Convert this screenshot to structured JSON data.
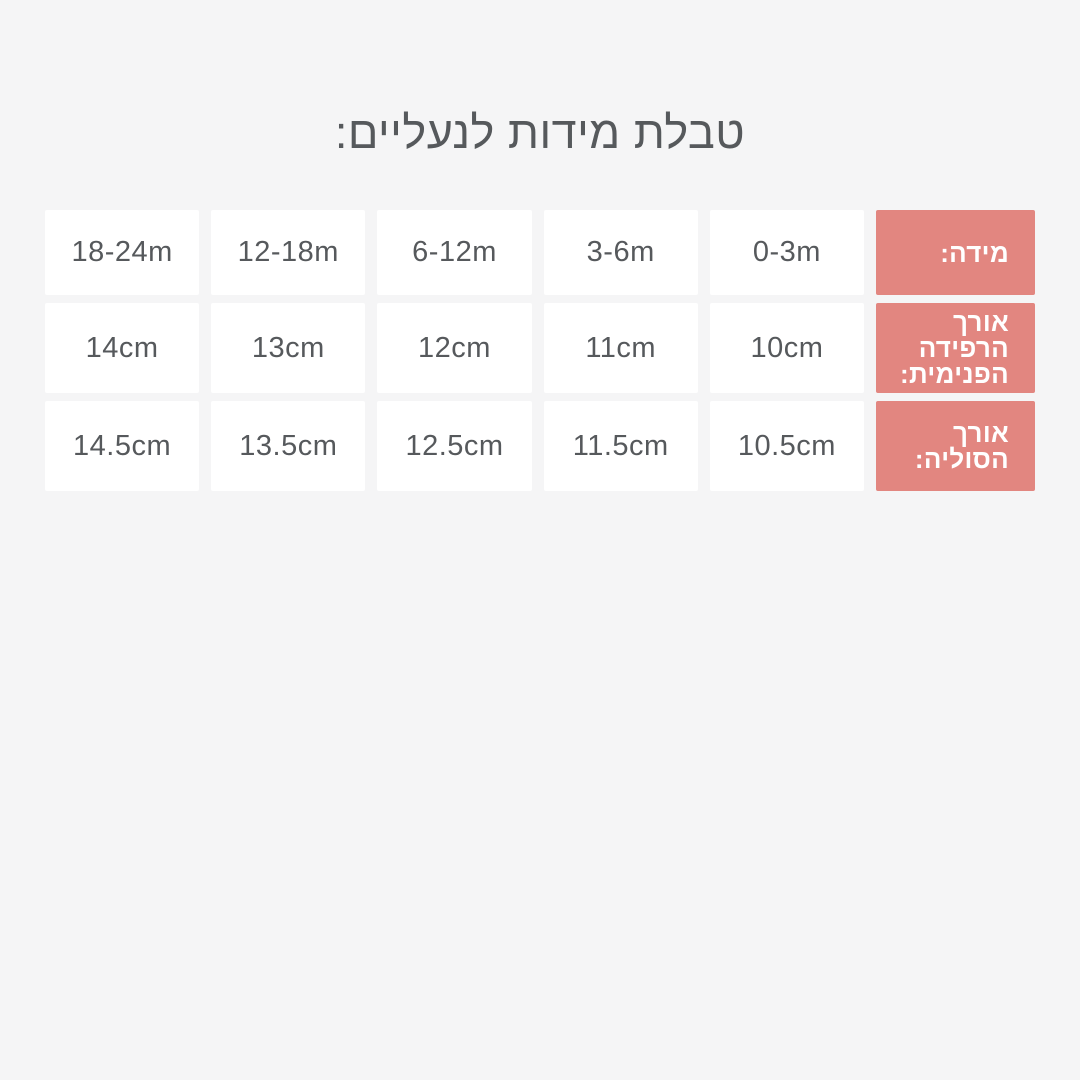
{
  "page": {
    "background": "#f5f5f6"
  },
  "title": "טבלת מידות לנעליים:",
  "colors": {
    "header_bg": "#e28680",
    "header_text": "#ffffff",
    "cell_bg": "#ffffff",
    "cell_text": "#56595c"
  },
  "table": {
    "row_headers": [
      "מידה:",
      "אורך\nהרפידה\nהפנימית:",
      "אורך\nהסוליה:"
    ],
    "rows": [
      {
        "values": [
          "0-3m",
          "3-6m",
          "6-12m",
          "12-18m",
          "18-24m"
        ]
      },
      {
        "values": [
          "10cm",
          "11cm",
          "12cm",
          "13cm",
          "14cm"
        ]
      },
      {
        "values": [
          "10.5cm",
          "11.5cm",
          "12.5cm",
          "13.5cm",
          "14.5cm"
        ]
      }
    ]
  },
  "chart_data": {
    "type": "table",
    "title": "טבלת מידות לנעליים:",
    "direction": "rtl",
    "layout_hint": "header column on the right (salmon), data columns ordered right-to-left from 0-3m to 18-24m",
    "rows": [
      {
        "label": "מידה:",
        "values": [
          "0-3m",
          "3-6m",
          "6-12m",
          "12-18m",
          "18-24m"
        ]
      },
      {
        "label": "אורך הרפידה הפנימית:",
        "values": [
          "10cm",
          "11cm",
          "12cm",
          "13cm",
          "14cm"
        ]
      },
      {
        "label": "אורך הסוליה:",
        "values": [
          "10.5cm",
          "11.5cm",
          "12.5cm",
          "13.5cm",
          "14.5cm"
        ]
      }
    ]
  }
}
